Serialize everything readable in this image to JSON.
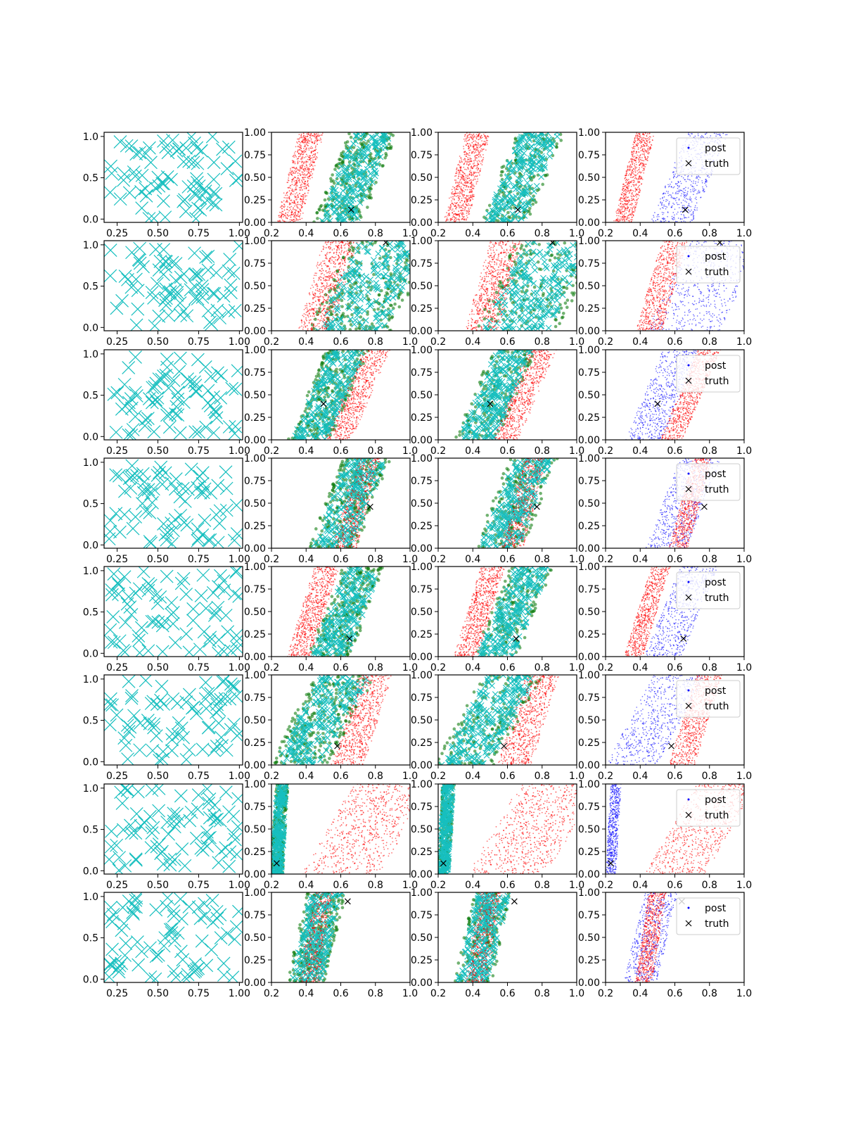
{
  "chart_data": {
    "type": "scatter",
    "layout": {
      "rows": 8,
      "cols": 4
    },
    "col1": {
      "xlim": [
        0.17,
        1.02
      ],
      "ylim": [
        -0.04,
        1.05
      ],
      "xticks": [
        "0.25",
        "0.50",
        "0.75",
        "1.00"
      ],
      "yticks": [
        "0.0",
        "0.5",
        "1.0"
      ],
      "color": "#17bfbf",
      "marker": "x"
    },
    "cols234": {
      "xlim": [
        0.2,
        1.0
      ],
      "ylim": [
        0.0,
        1.0
      ],
      "xticks": [
        "0.2",
        "0.4",
        "0.6",
        "0.8",
        "1.0"
      ],
      "yticks": [
        "0.00",
        "0.25",
        "0.50",
        "0.75",
        "1.00"
      ]
    },
    "colors": {
      "cyan": "#17bfbf",
      "green": "#127f12",
      "red": "#ff0000",
      "blue": "#0000ff",
      "truth": "#000000"
    },
    "legend": {
      "post": "post",
      "truth": "truth",
      "placement": "upper-right"
    },
    "rows": [
      {
        "truth": [
          0.66,
          0.14
        ],
        "red": {
          "x0": 0.3,
          "x1": 0.43,
          "w": 0.11
        },
        "blue": {
          "x0": 0.58,
          "x1": 0.79,
          "w": 0.2
        },
        "legend": true
      },
      {
        "truth": [
          0.86,
          0.98
        ],
        "red": {
          "x0": 0.45,
          "x1": 0.6,
          "w": 0.15
        },
        "blue": {
          "x0": 0.65,
          "x1": 0.9,
          "w": 0.35
        },
        "legend": true
      },
      {
        "truth": [
          0.5,
          0.4
        ],
        "red": {
          "x0": 0.58,
          "x1": 0.8,
          "w": 0.13
        },
        "blue": {
          "x0": 0.42,
          "x1": 0.64,
          "w": 0.18
        },
        "legend": true
      },
      {
        "truth": [
          0.77,
          0.46
        ],
        "red": {
          "x0": 0.62,
          "x1": 0.76,
          "w": 0.11
        },
        "blue": {
          "x0": 0.55,
          "x1": 0.75,
          "w": 0.2
        },
        "legend": true
      },
      {
        "truth": [
          0.65,
          0.2
        ],
        "red": {
          "x0": 0.36,
          "x1": 0.52,
          "w": 0.11
        },
        "blue": {
          "x0": 0.53,
          "x1": 0.74,
          "w": 0.18
        },
        "legend": true
      },
      {
        "truth": [
          0.58,
          0.21
        ],
        "red": {
          "x0": 0.64,
          "x1": 0.8,
          "w": 0.15
        },
        "blue": {
          "x0": 0.35,
          "x1": 0.63,
          "w": 0.25
        },
        "legend": true
      },
      {
        "truth": [
          0.23,
          0.12
        ],
        "red": {
          "x0": 0.6,
          "x1": 0.9,
          "w": 0.35
        },
        "blue": {
          "x0": 0.23,
          "x1": 0.26,
          "w": 0.05
        },
        "legend": true
      },
      {
        "truth": [
          0.64,
          0.9
        ],
        "red": {
          "x0": 0.42,
          "x1": 0.5,
          "w": 0.1
        },
        "blue": {
          "x0": 0.4,
          "x1": 0.52,
          "w": 0.16
        },
        "legend": true
      }
    ]
  }
}
